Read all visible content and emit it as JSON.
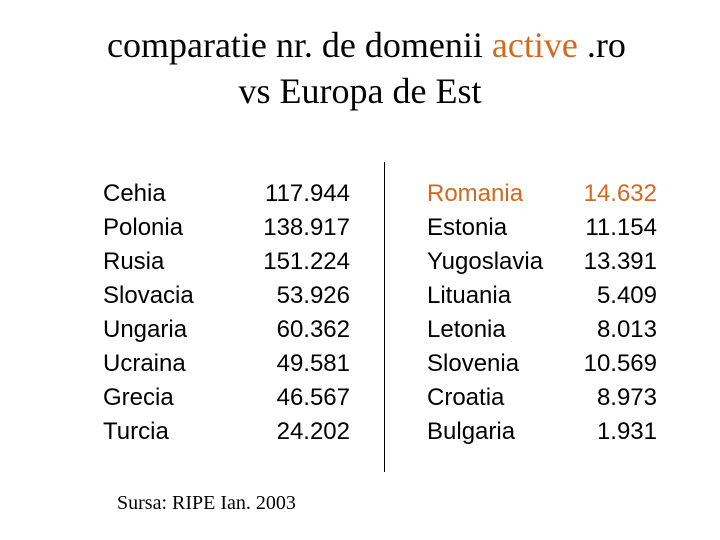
{
  "title": {
    "line1_prefix": "comparatie nr. de domenii ",
    "line1_highlight": "active",
    "line1_suffix": " .ro",
    "line2": "vs Europa de Est"
  },
  "left_table": [
    {
      "country": "Cehia",
      "value": "117.944"
    },
    {
      "country": "Polonia",
      "value": "138.917"
    },
    {
      "country": "Rusia",
      "value": "151.224"
    },
    {
      "country": "Slovacia",
      "value": "53.926"
    },
    {
      "country": "Ungaria",
      "value": "60.362"
    },
    {
      "country": "Ucraina",
      "value": "49.581"
    },
    {
      "country": "Grecia",
      "value": "46.567"
    },
    {
      "country": "Turcia",
      "value": "24.202"
    }
  ],
  "right_table": [
    {
      "country": "Romania",
      "value": "14.632"
    },
    {
      "country": "Estonia",
      "value": "11.154"
    },
    {
      "country": "Yugoslavia",
      "value": "13.391"
    },
    {
      "country": "Lituania",
      "value": "5.409"
    },
    {
      "country": "Letonia",
      "value": "8.013"
    },
    {
      "country": "Slovenia",
      "value": "10.569"
    },
    {
      "country": "Croatia",
      "value": "8.973"
    },
    {
      "country": "Bulgaria",
      "value": "1.931"
    }
  ],
  "source": "Sursa: RIPE Ian. 2003",
  "colors": {
    "accent": "#d2691e",
    "text": "#000000",
    "background": "#ffffff"
  }
}
